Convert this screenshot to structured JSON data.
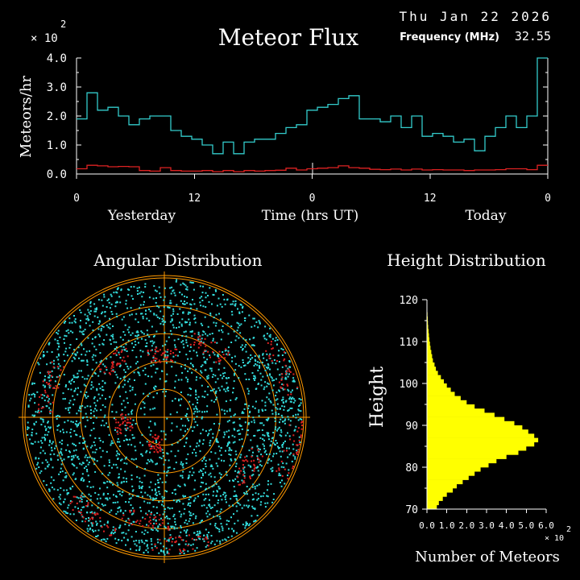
{
  "header": {
    "date": "Thu Jan 22 2026",
    "frequency_label": "Frequency (MHz)",
    "frequency_value": "32.55"
  },
  "colors": {
    "background": "#000000",
    "text": "#ffffff",
    "flux_series": "#33cccc",
    "flux_series_red": "#dd2222",
    "polar_grid": "#ff9900",
    "polar_points_cyan": "#33dddd",
    "polar_points_red": "#dd2222",
    "height_bars": "#ffff00"
  },
  "chart_data": [
    {
      "type": "line",
      "title": "Meteor Flux",
      "ylabel": "Meteors/hr",
      "y_multiplier": "× 10",
      "y_multiplier_exp": "2",
      "xlabel": "Time (hrs UT)",
      "day_labels": [
        "Yesterday",
        "Today"
      ],
      "x_ticks": [
        "0",
        "12",
        "0",
        "12",
        "0"
      ],
      "y_ticks": [
        "0.0",
        "1.0",
        "2.0",
        "3.0",
        "4.0"
      ],
      "ylim": [
        0,
        4
      ],
      "step": true,
      "series": [
        {
          "color": "#33cccc",
          "values": [
            1.9,
            2.8,
            2.2,
            2.3,
            2.0,
            1.7,
            1.9,
            2.0,
            2.0,
            1.5,
            1.3,
            1.2,
            1.0,
            0.7,
            1.1,
            0.7,
            1.1,
            1.2,
            1.2,
            1.4,
            1.6,
            1.7,
            2.2,
            2.3,
            2.4,
            2.6,
            2.7,
            1.9,
            1.9,
            1.8,
            2.0,
            1.6,
            2.0,
            1.3,
            1.4,
            1.3,
            1.1,
            1.2,
            0.8,
            1.3,
            1.6,
            2.0,
            1.6,
            2.0,
            4.0
          ]
        },
        {
          "color": "#dd2222",
          "values": [
            0.18,
            0.3,
            0.28,
            0.25,
            0.26,
            0.25,
            0.12,
            0.1,
            0.22,
            0.12,
            0.1,
            0.1,
            0.12,
            0.08,
            0.12,
            0.08,
            0.12,
            0.1,
            0.12,
            0.13,
            0.2,
            0.14,
            0.18,
            0.2,
            0.22,
            0.28,
            0.22,
            0.2,
            0.16,
            0.15,
            0.17,
            0.14,
            0.17,
            0.14,
            0.15,
            0.14,
            0.14,
            0.12,
            0.14,
            0.14,
            0.15,
            0.18,
            0.18,
            0.15,
            0.3
          ]
        }
      ]
    },
    {
      "type": "scatter",
      "title": "Angular Distribution",
      "projection": "polar",
      "rings": 5,
      "series": [
        {
          "color": "#33dddd",
          "count": 2600,
          "distribution": "concentrated toward outer rings"
        },
        {
          "color": "#dd2222",
          "count": 420,
          "distribution": "clustered arcs near rim and inner rings"
        }
      ]
    },
    {
      "type": "bar",
      "orientation": "horizontal",
      "title": "Height Distribution",
      "ylabel": "Height",
      "xlabel": "Number of Meteors",
      "x_multiplier": "× 10",
      "x_multiplier_exp": "2",
      "x_ticks": [
        "0.0",
        "1.0",
        "2.0",
        "3.0",
        "4.0",
        "5.0",
        "6.0"
      ],
      "xlim": [
        0,
        6
      ],
      "y_ticks": [
        "70",
        "80",
        "90",
        "100",
        "110",
        "120"
      ],
      "ylim": [
        70,
        120
      ],
      "bins": [
        {
          "h": 70,
          "n": 0.5
        },
        {
          "h": 71,
          "n": 0.6
        },
        {
          "h": 72,
          "n": 0.8
        },
        {
          "h": 73,
          "n": 1.0
        },
        {
          "h": 74,
          "n": 1.3
        },
        {
          "h": 75,
          "n": 1.5
        },
        {
          "h": 76,
          "n": 1.8
        },
        {
          "h": 77,
          "n": 2.1
        },
        {
          "h": 78,
          "n": 2.4
        },
        {
          "h": 79,
          "n": 2.7
        },
        {
          "h": 80,
          "n": 3.1
        },
        {
          "h": 81,
          "n": 3.5
        },
        {
          "h": 82,
          "n": 4.0
        },
        {
          "h": 83,
          "n": 4.6
        },
        {
          "h": 84,
          "n": 5.0
        },
        {
          "h": 85,
          "n": 5.4
        },
        {
          "h": 86,
          "n": 5.6
        },
        {
          "h": 87,
          "n": 5.4
        },
        {
          "h": 88,
          "n": 5.1
        },
        {
          "h": 89,
          "n": 4.8
        },
        {
          "h": 90,
          "n": 4.4
        },
        {
          "h": 91,
          "n": 3.9
        },
        {
          "h": 92,
          "n": 3.4
        },
        {
          "h": 93,
          "n": 2.9
        },
        {
          "h": 94,
          "n": 2.4
        },
        {
          "h": 95,
          "n": 2.0
        },
        {
          "h": 96,
          "n": 1.7
        },
        {
          "h": 97,
          "n": 1.4
        },
        {
          "h": 98,
          "n": 1.2
        },
        {
          "h": 99,
          "n": 1.0
        },
        {
          "h": 100,
          "n": 0.85
        },
        {
          "h": 101,
          "n": 0.7
        },
        {
          "h": 102,
          "n": 0.55
        },
        {
          "h": 103,
          "n": 0.45
        },
        {
          "h": 104,
          "n": 0.38
        },
        {
          "h": 105,
          "n": 0.3
        },
        {
          "h": 106,
          "n": 0.26
        },
        {
          "h": 107,
          "n": 0.22
        },
        {
          "h": 108,
          "n": 0.18
        },
        {
          "h": 109,
          "n": 0.15
        },
        {
          "h": 110,
          "n": 0.12
        },
        {
          "h": 111,
          "n": 0.1
        },
        {
          "h": 112,
          "n": 0.08
        },
        {
          "h": 113,
          "n": 0.06
        },
        {
          "h": 114,
          "n": 0.05
        },
        {
          "h": 115,
          "n": 0.04
        },
        {
          "h": 116,
          "n": 0.03
        },
        {
          "h": 117,
          "n": 0.02
        },
        {
          "h": 118,
          "n": 0.02
        },
        {
          "h": 119,
          "n": 0.01
        }
      ]
    }
  ]
}
